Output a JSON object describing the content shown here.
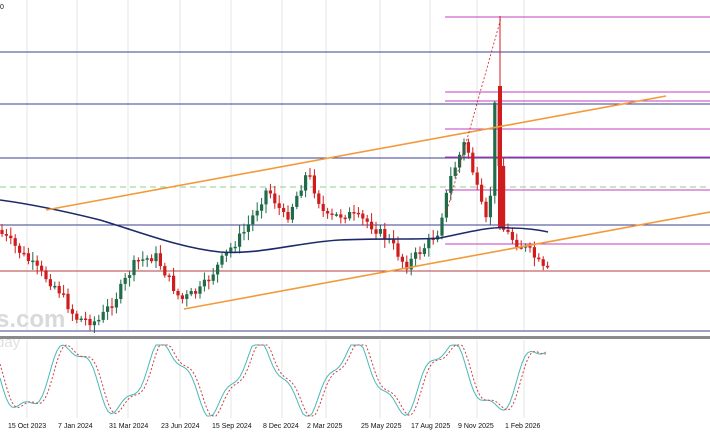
{
  "chart_data": [
    {
      "type": "candlestick",
      "xaxis_ticks": [
        "15 Oct 2023",
        "7 Jan 2024",
        "31 Mar 2024",
        "23 Jun 2024",
        "15 Sep 2024",
        "8 Dec 2024",
        "2 Mar 2025",
        "25 May 2025",
        "17 Aug 2025",
        "9 Nov 2025",
        "1 Feb 2026"
      ],
      "overlays": [
        "moving-average",
        "ascending-channel",
        "horizontal-levels",
        "fibonacci-levels"
      ],
      "grid": true,
      "legend": "none"
    },
    {
      "type": "line",
      "name": "stochastic-oscillator",
      "series_count": 2,
      "grid": false,
      "legend": "none"
    }
  ],
  "corner_label": "0",
  "watermark": {
    "main": "s.com",
    "sub": "day"
  },
  "colors": {
    "bull_candle": "#1f6b4a",
    "bear_candle": "#d01c1c",
    "moving_average": "#1c2a6b",
    "channel": "#f39a3a",
    "horizontal_level": "#3d3f8f",
    "fib_level": "#c040c0",
    "support_level": "#b04040",
    "dashed_level": "#8ed08e",
    "stoch_main": "#4ab8b8",
    "stoch_signal": "#d04040",
    "grid": "#e6e6e6"
  }
}
